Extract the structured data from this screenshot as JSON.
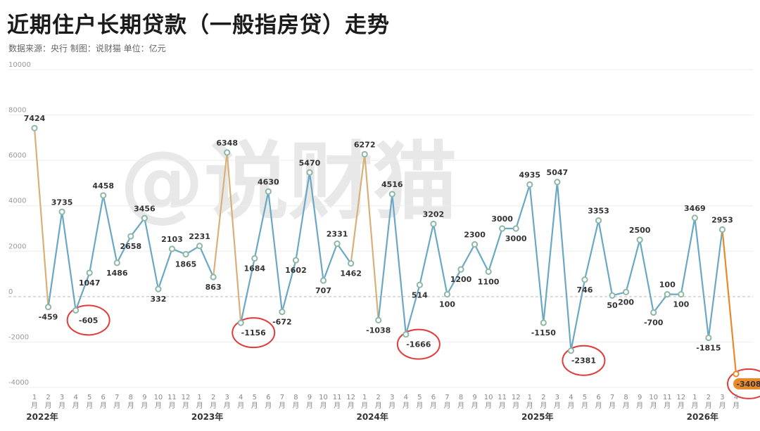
{
  "title": "近期住户长期贷款（一般指房贷）走势",
  "subtitle": "数据来源：央行    制图：说财猫   单位：亿元",
  "watermark": "@说财猫",
  "colors": {
    "line_blue": "#6aa8c4",
    "line_gold": "#d9b07a",
    "last_orange": "#e8892b",
    "point": "#8fb7a6",
    "highlight": "#e23b3b"
  },
  "chart_data": {
    "type": "line",
    "ylabel": "",
    "ylim": [
      -4000,
      10000
    ],
    "yticks": [
      -4000,
      -2000,
      0,
      2000,
      4000,
      6000,
      8000,
      10000
    ],
    "grid": true,
    "x": [
      "2022-01",
      "2022-02",
      "2022-03",
      "2022-04",
      "2022-05",
      "2022-06",
      "2022-07",
      "2022-08",
      "2022-09",
      "2022-10",
      "2022-11",
      "2022-12",
      "2023-01",
      "2023-02",
      "2023-03",
      "2023-04",
      "2023-05",
      "2023-06",
      "2023-07",
      "2023-08",
      "2023-09",
      "2023-10",
      "2023-11",
      "2023-12",
      "2024-01",
      "2024-02",
      "2024-03",
      "2024-04",
      "2024-05",
      "2024-06",
      "2024-07",
      "2024-08",
      "2024-09",
      "2024-10",
      "2024-11",
      "2024-12",
      "2025-01",
      "2025-02",
      "2025-03",
      "2025-04",
      "2025-05",
      "2025-06",
      "2025-07",
      "2025-08",
      "2025-09",
      "2025-10",
      "2025-11",
      "2025-12",
      "2026-01",
      "2026-02",
      "2026-03",
      "2026-04"
    ],
    "month_labels": [
      "1",
      "2",
      "3",
      "4",
      "5",
      "6",
      "7",
      "8",
      "9",
      "10",
      "11",
      "12",
      "1",
      "2",
      "3",
      "4",
      "5",
      "6",
      "7",
      "8",
      "9",
      "10",
      "11",
      "12",
      "1",
      "2",
      "3",
      "4",
      "5",
      "6",
      "7",
      "8",
      "9",
      "10",
      "11",
      "12",
      "1",
      "2",
      "3",
      "4",
      "5",
      "6",
      "7",
      "8",
      "9",
      "10",
      "11",
      "12",
      "1",
      "2",
      "3",
      "4"
    ],
    "month_suffix": "月",
    "year_labels": [
      "2022年",
      "2023年",
      "2024年",
      "2025年",
      "2026年"
    ],
    "values": [
      7424,
      -459,
      3735,
      -605,
      1047,
      4458,
      1486,
      2658,
      3456,
      332,
      2103,
      1865,
      2231,
      863,
      6348,
      -1156,
      1684,
      4630,
      -672,
      1602,
      5470,
      707,
      2331,
      1462,
      6272,
      -1038,
      4516,
      -1666,
      514,
      3202,
      100,
      1200,
      2300,
      1100,
      3000,
      3000,
      4935,
      -1150,
      5047,
      -2381,
      746,
      3353,
      50,
      200,
      2500,
      -700,
      100,
      100,
      3469,
      -1815,
      2953,
      -3408
    ],
    "data_labels": [
      "7424",
      "-459",
      "3735",
      "-605",
      "1047",
      "4458",
      "1486",
      "2658",
      "3456",
      "332",
      "2103",
      "1865",
      "2231",
      "863",
      "6348",
      "-1156",
      "1684",
      "4630",
      "-672",
      "1602",
      "5470",
      "707",
      "2331",
      "1462",
      "6272",
      "-1038",
      "4516",
      "-1666",
      "514",
      "3202",
      "100",
      "1200",
      "2300",
      "1100",
      "3000",
      "3000",
      "4935",
      "-1150",
      "5047",
      "-2381",
      "746",
      "3353",
      "50",
      "200",
      "2500",
      "-700",
      "100",
      "100",
      "3469",
      "-1815",
      "2953",
      "-3408"
    ],
    "highlighted": [
      "2022-04",
      "2023-04",
      "2024-04",
      "2025-04",
      "2026-04"
    ]
  }
}
